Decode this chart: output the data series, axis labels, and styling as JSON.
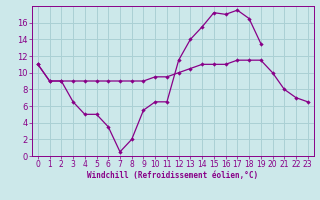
{
  "xlabel": "Windchill (Refroidissement éolien,°C)",
  "background_color": "#cce8ea",
  "grid_color": "#aad0d4",
  "line_color": "#880088",
  "x_hours": [
    0,
    1,
    2,
    3,
    4,
    5,
    6,
    7,
    8,
    9,
    10,
    11,
    12,
    13,
    14,
    15,
    16,
    17,
    18,
    19,
    20,
    21,
    22,
    23
  ],
  "temp_line": [
    11.0,
    9.0,
    9.0,
    9.0,
    9.0,
    9.0,
    9.0,
    9.0,
    9.0,
    9.0,
    9.5,
    9.5,
    10.0,
    10.5,
    11.0,
    11.0,
    11.0,
    11.5,
    11.5,
    11.5,
    10.0,
    8.0,
    7.0,
    6.5
  ],
  "windchill_line": [
    11.0,
    9.0,
    9.0,
    6.5,
    5.0,
    5.0,
    3.5,
    0.5,
    2.0,
    5.5,
    6.5,
    6.5,
    11.5,
    14.0,
    15.5,
    17.2,
    17.0,
    17.5,
    16.5,
    13.5,
    null,
    null,
    null,
    null
  ],
  "ylim": [
    0,
    18
  ],
  "yticks": [
    0,
    2,
    4,
    6,
    8,
    10,
    12,
    14,
    16
  ],
  "xticks": [
    0,
    1,
    2,
    3,
    4,
    5,
    6,
    7,
    8,
    9,
    10,
    11,
    12,
    13,
    14,
    15,
    16,
    17,
    18,
    19,
    20,
    21,
    22,
    23
  ],
  "tick_fontsize": 5.5,
  "xlabel_fontsize": 5.5
}
